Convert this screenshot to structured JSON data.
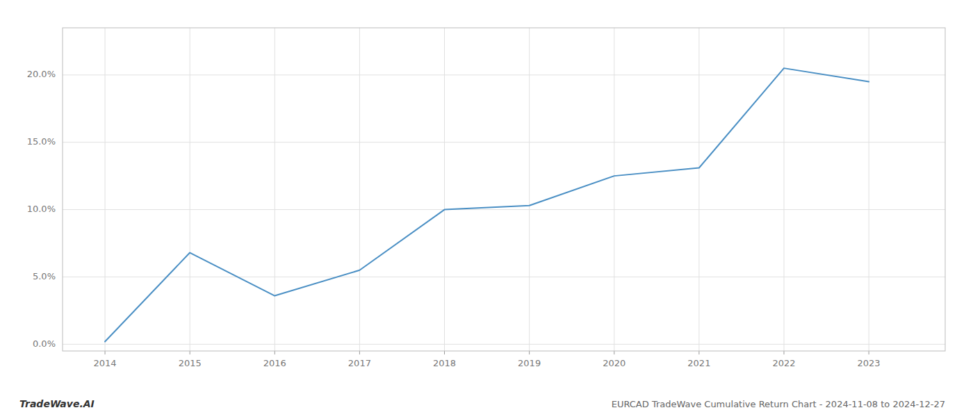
{
  "chart_data": {
    "type": "line",
    "title": "EURCAD TradeWave Cumulative Return Chart - 2024-11-08 to 2024-12-27",
    "annotations": [
      {
        "text": "TradeWave.AI"
      }
    ],
    "x": [
      2014,
      2015,
      2016,
      2017,
      2018,
      2019,
      2020,
      2021,
      2022,
      2023
    ],
    "values": [
      0.002,
      0.068,
      0.036,
      0.055,
      0.1,
      0.103,
      0.125,
      0.131,
      0.205,
      0.195
    ],
    "color": "#4a8fc4",
    "xlim": [
      2013.5,
      2023.9
    ],
    "ylim": [
      -0.005,
      0.235
    ],
    "xticks": [
      2014,
      2015,
      2016,
      2017,
      2018,
      2019,
      2020,
      2021,
      2022,
      2023
    ],
    "yticks": [
      {
        "value": 0.0,
        "label": "0.0%"
      },
      {
        "value": 0.05,
        "label": "5.0%"
      },
      {
        "value": 0.1,
        "label": "10.0%"
      },
      {
        "value": 0.15,
        "label": "15.0%"
      },
      {
        "value": 0.2,
        "label": "20.0%"
      }
    ],
    "grid": true
  }
}
